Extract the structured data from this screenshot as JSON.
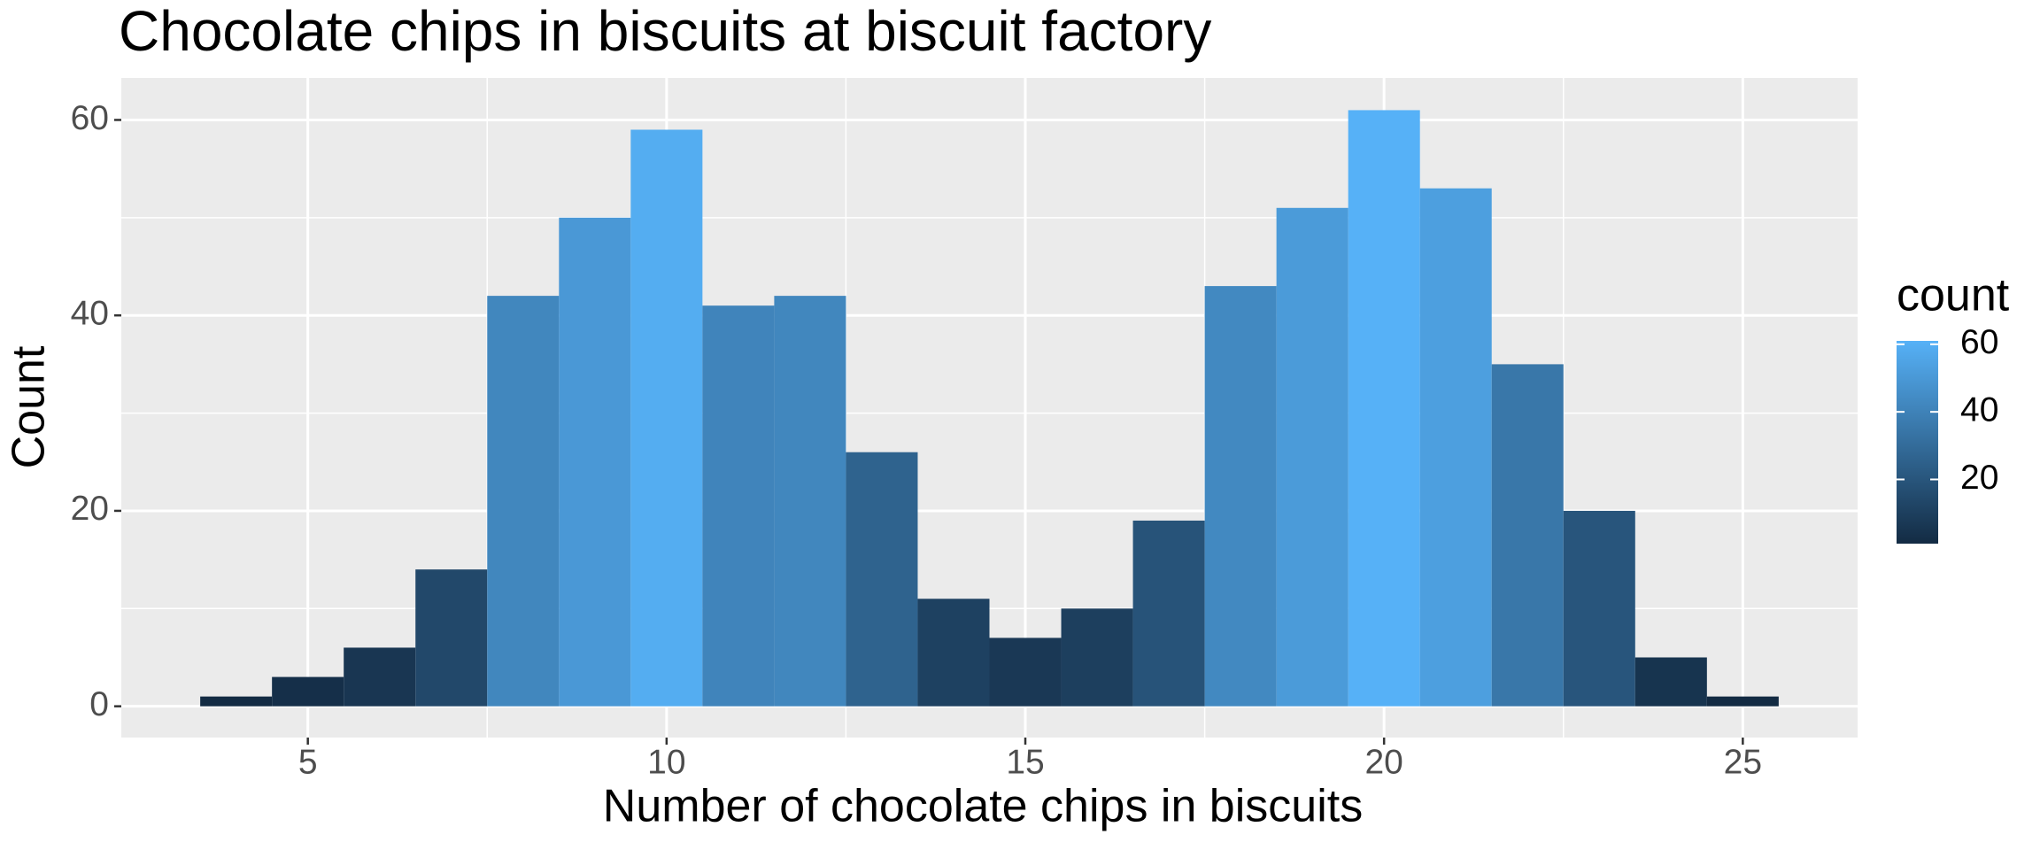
{
  "chart_data": {
    "type": "histogram",
    "title": "Chocolate chips in biscuits at biscuit factory",
    "x_label": "Number of chocolate chips in biscuits",
    "y_label": "Count",
    "bins": [
      3.5,
      4.5,
      5.5,
      6.5,
      7.5,
      8.5,
      9.5,
      10.5,
      11.5,
      12.5,
      13.5,
      14.5,
      15.5,
      16.5,
      17.5,
      18.5,
      19.5,
      20.5,
      21.5,
      22.5,
      23.5,
      24.5,
      25.5
    ],
    "values": [
      1,
      3,
      6,
      14,
      42,
      50,
      59,
      41,
      42,
      26,
      11,
      7,
      10,
      19,
      43,
      51,
      61,
      53,
      35,
      20,
      5,
      1
    ],
    "xlim": [
      2.4,
      26.6
    ],
    "xticks": [
      5,
      10,
      15,
      20,
      25
    ],
    "ylim": [
      -3.2,
      64.3
    ],
    "yticks": [
      0,
      20,
      40,
      60
    ],
    "grid": true,
    "legend_position": "right",
    "colorscale": {
      "title": "count",
      "low": "#132B43",
      "high": "#56B1F7",
      "limits": [
        1,
        61
      ],
      "ticks": [
        20,
        40,
        60
      ]
    }
  }
}
